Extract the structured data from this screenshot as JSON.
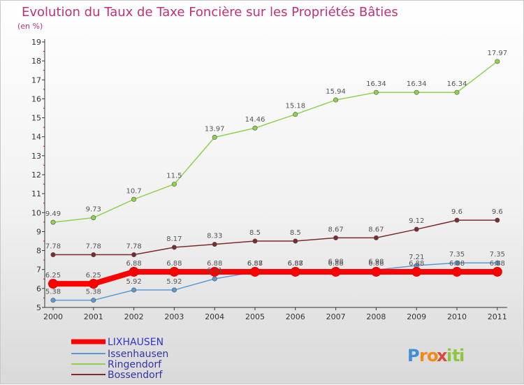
{
  "chart_data": {
    "type": "line",
    "title": "Evolution du Taux de Taxe Foncière sur les Propriétés Bâties",
    "ylabel": "(en %)",
    "xlabel": "",
    "ylim": [
      5,
      19
    ],
    "yticks": [
      5,
      6,
      7,
      8,
      9,
      10,
      11,
      12,
      13,
      14,
      15,
      16,
      17,
      18,
      19
    ],
    "x": [
      "2000",
      "2001",
      "2002",
      "2003",
      "2004",
      "2005",
      "2006",
      "2007",
      "2008",
      "2009",
      "2010",
      "2011"
    ],
    "grid": false,
    "legend": "bottom-left",
    "series": [
      {
        "name": "LIXHAUSEN",
        "color": "#ff0000",
        "values": [
          6.25,
          6.25,
          6.88,
          6.88,
          6.88,
          6.88,
          6.88,
          6.88,
          6.88,
          6.88,
          6.88,
          6.88
        ],
        "labels": [
          "6.25",
          "6.25",
          "6.88",
          "6.88",
          "6.88",
          "6.88",
          "6.88",
          "6.88",
          "6.88",
          "6.88",
          "6.88",
          "6.88"
        ]
      },
      {
        "name": "Issenhausen",
        "color": "#5b9bd5",
        "values": [
          5.38,
          5.38,
          5.92,
          5.92,
          6.51,
          6.87,
          6.87,
          6.98,
          6.98,
          7.21,
          7.35,
          7.35
        ],
        "labels": [
          "5.38",
          "5.38",
          "5.92",
          "5.92",
          "6.51",
          "6.87",
          "6.87",
          "6.98",
          "6.98",
          "7.21",
          "7.35",
          "7.35"
        ]
      },
      {
        "name": "Ringendorf",
        "color": "#8fd14f",
        "values": [
          9.49,
          9.73,
          10.7,
          11.5,
          13.97,
          14.46,
          15.18,
          15.94,
          16.34,
          16.34,
          16.34,
          17.97
        ],
        "labels": [
          "9.49",
          "9.73",
          "10.7",
          "11.5",
          "13.97",
          "14.46",
          "15.18",
          "15.94",
          "16.34",
          "16.34",
          "16.34",
          "17.97"
        ]
      },
      {
        "name": "Bossendorf",
        "color": "#7b2b2b",
        "values": [
          7.78,
          7.78,
          7.78,
          8.17,
          8.33,
          8.5,
          8.5,
          8.67,
          8.67,
          9.12,
          9.6,
          9.6
        ],
        "labels": [
          "7.78",
          "7.78",
          "7.78",
          "8.17",
          "8.33",
          "8.5",
          "8.5",
          "8.67",
          "8.67",
          "9.12",
          "9.6",
          "9.6"
        ]
      }
    ]
  },
  "logo": {
    "letters": [
      "P",
      "r",
      "o",
      "x",
      "i",
      "t",
      "i"
    ],
    "colors": [
      "#3d8fd8",
      "#f28a1a",
      "#f28a1a",
      "#d94a3a",
      "#8dc63f",
      "#8dc63f",
      "#8dc63f"
    ]
  }
}
